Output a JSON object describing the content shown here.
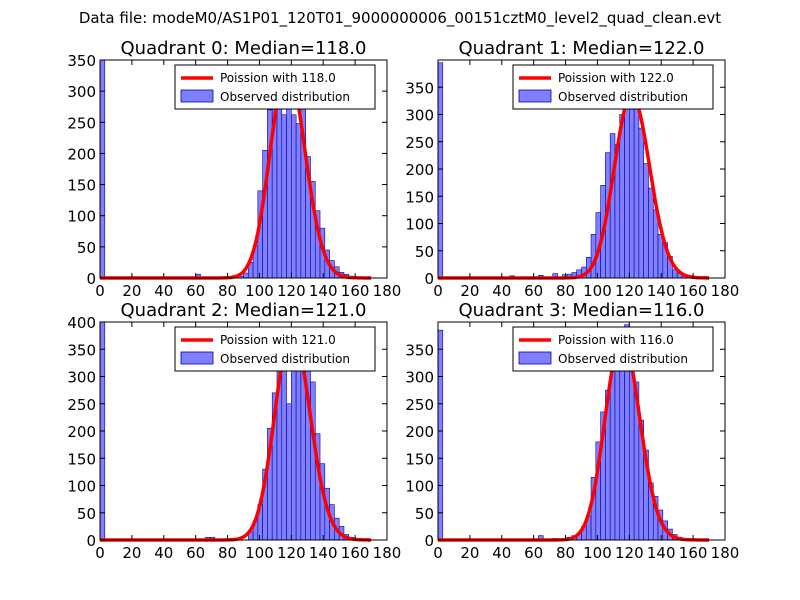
{
  "figure_title": "Data file: modeM0/AS1P01_120T01_9000000006_00151cztM0_level2_quad_clean.evt",
  "colors": {
    "hist_fill": "#8080ff",
    "hist_edge": "#0000aa",
    "poisson_line": "#ff0000"
  },
  "chart_data": [
    {
      "type": "bar",
      "title": "Quadrant 0: Median=118.0",
      "xlim": [
        0,
        180
      ],
      "ylim": [
        0,
        350
      ],
      "xticks": [
        0,
        20,
        40,
        60,
        80,
        100,
        120,
        140,
        160,
        180
      ],
      "yticks": [
        0,
        50,
        100,
        150,
        200,
        250,
        300,
        350
      ],
      "legend": [
        "Poission with 118.0",
        "Observed distribution"
      ],
      "legend_location": "top-right",
      "bin_width": 3,
      "bins": [
        [
          0,
          350
        ],
        [
          60,
          6
        ],
        [
          87,
          3
        ],
        [
          90,
          8
        ],
        [
          93,
          25
        ],
        [
          96,
          52
        ],
        [
          99,
          140
        ],
        [
          102,
          205
        ],
        [
          105,
          270
        ],
        [
          108,
          315
        ],
        [
          111,
          288
        ],
        [
          114,
          262
        ],
        [
          117,
          292
        ],
        [
          120,
          262
        ],
        [
          123,
          248
        ],
        [
          126,
          292
        ],
        [
          129,
          195
        ],
        [
          132,
          155
        ],
        [
          135,
          108
        ],
        [
          138,
          80
        ],
        [
          141,
          45
        ],
        [
          144,
          28
        ],
        [
          147,
          18
        ],
        [
          150,
          9
        ],
        [
          153,
          6
        ],
        [
          156,
          3
        ],
        [
          159,
          2
        ]
      ],
      "poisson": {
        "mean": 118.0,
        "peak": 338
      }
    },
    {
      "type": "bar",
      "title": "Quadrant 1: Median=122.0",
      "xlim": [
        0,
        180
      ],
      "ylim": [
        0,
        400
      ],
      "xticks": [
        0,
        20,
        40,
        60,
        80,
        100,
        120,
        140,
        160,
        180
      ],
      "yticks": [
        0,
        50,
        100,
        150,
        200,
        250,
        300,
        350
      ],
      "legend": [
        "Poission with 122.0",
        "Observed distribution"
      ],
      "legend_location": "top-right",
      "bin_width": 3,
      "bins": [
        [
          0,
          395
        ],
        [
          45,
          4
        ],
        [
          63,
          5
        ],
        [
          72,
          8
        ],
        [
          78,
          6
        ],
        [
          81,
          7
        ],
        [
          84,
          10
        ],
        [
          87,
          15
        ],
        [
          90,
          20
        ],
        [
          93,
          38
        ],
        [
          96,
          80
        ],
        [
          99,
          120
        ],
        [
          102,
          170
        ],
        [
          105,
          230
        ],
        [
          108,
          265
        ],
        [
          111,
          245
        ],
        [
          114,
          300
        ],
        [
          117,
          320
        ],
        [
          120,
          370
        ],
        [
          123,
          340
        ],
        [
          126,
          275
        ],
        [
          129,
          210
        ],
        [
          132,
          165
        ],
        [
          135,
          125
        ],
        [
          138,
          80
        ],
        [
          141,
          65
        ],
        [
          144,
          40
        ],
        [
          147,
          15
        ],
        [
          150,
          8
        ],
        [
          153,
          5
        ],
        [
          156,
          2
        ]
      ],
      "poisson": {
        "mean": 122.0,
        "peak": 336
      }
    },
    {
      "type": "bar",
      "title": "Quadrant 2: Median=121.0",
      "xlim": [
        0,
        180
      ],
      "ylim": [
        0,
        400
      ],
      "xticks": [
        0,
        20,
        40,
        60,
        80,
        100,
        120,
        140,
        160,
        180
      ],
      "yticks": [
        0,
        50,
        100,
        150,
        200,
        250,
        300,
        350,
        400
      ],
      "legend": [
        "Poission with 121.0",
        "Observed distribution"
      ],
      "legend_location": "top-right",
      "bin_width": 3,
      "bins": [
        [
          0,
          400
        ],
        [
          66,
          5
        ],
        [
          69,
          5
        ],
        [
          93,
          15
        ],
        [
          96,
          35
        ],
        [
          99,
          65
        ],
        [
          102,
          130
        ],
        [
          105,
          205
        ],
        [
          108,
          270
        ],
        [
          111,
          315
        ],
        [
          114,
          315
        ],
        [
          117,
          250
        ],
        [
          120,
          340
        ],
        [
          123,
          340
        ],
        [
          126,
          315
        ],
        [
          129,
          385
        ],
        [
          132,
          290
        ],
        [
          135,
          195
        ],
        [
          138,
          140
        ],
        [
          141,
          95
        ],
        [
          144,
          65
        ],
        [
          147,
          40
        ],
        [
          150,
          25
        ],
        [
          153,
          10
        ],
        [
          156,
          5
        ]
      ],
      "poisson": {
        "mean": 121.0,
        "peak": 385
      }
    },
    {
      "type": "bar",
      "title": "Quadrant 3: Median=116.0",
      "xlim": [
        0,
        180
      ],
      "ylim": [
        0,
        400
      ],
      "xticks": [
        0,
        20,
        40,
        60,
        80,
        100,
        120,
        140,
        160,
        180
      ],
      "yticks": [
        0,
        50,
        100,
        150,
        200,
        250,
        300,
        350
      ],
      "legend": [
        "Poission with 116.0",
        "Observed distribution"
      ],
      "legend_location": "top-right",
      "bin_width": 3,
      "bins": [
        [
          0,
          385
        ],
        [
          63,
          8
        ],
        [
          72,
          3
        ],
        [
          81,
          5
        ],
        [
          84,
          8
        ],
        [
          87,
          12
        ],
        [
          90,
          25
        ],
        [
          93,
          45
        ],
        [
          96,
          115
        ],
        [
          99,
          180
        ],
        [
          102,
          235
        ],
        [
          105,
          275
        ],
        [
          108,
          340
        ],
        [
          111,
          350
        ],
        [
          114,
          310
        ],
        [
          117,
          395
        ],
        [
          120,
          310
        ],
        [
          123,
          290
        ],
        [
          126,
          220
        ],
        [
          129,
          165
        ],
        [
          132,
          105
        ],
        [
          135,
          80
        ],
        [
          138,
          55
        ],
        [
          141,
          35
        ],
        [
          144,
          20
        ],
        [
          147,
          10
        ],
        [
          150,
          5
        ],
        [
          153,
          3
        ]
      ],
      "poisson": {
        "mean": 116.0,
        "peak": 372
      }
    }
  ]
}
